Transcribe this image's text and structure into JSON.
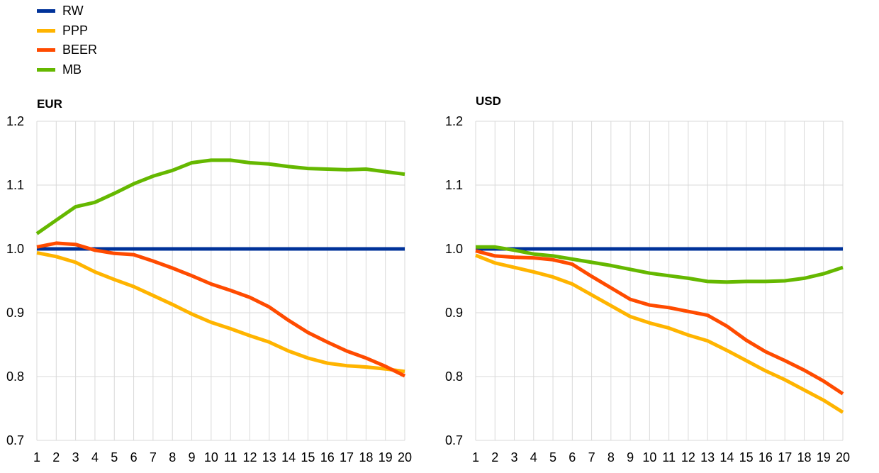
{
  "legend": [
    {
      "name": "RW",
      "color": "#003299"
    },
    {
      "name": "PPP",
      "color": "#ffb400"
    },
    {
      "name": "BEER",
      "color": "#ff4b00"
    },
    {
      "name": "MB",
      "color": "#65b800"
    }
  ],
  "chart_data": [
    {
      "type": "line",
      "title": "EUR",
      "x": [
        1,
        2,
        3,
        4,
        5,
        6,
        7,
        8,
        9,
        10,
        11,
        12,
        13,
        14,
        15,
        16,
        17,
        18,
        19,
        20
      ],
      "ylim": [
        0.7,
        1.2
      ],
      "yticks": [
        "1.2",
        "1.1",
        "1.0",
        "0.9",
        "0.8",
        "0.7"
      ],
      "grid": true,
      "legend": "top-left",
      "series": [
        {
          "name": "RW",
          "values": [
            1,
            1,
            1,
            1,
            1,
            1,
            1,
            1,
            1,
            1,
            1,
            1,
            1,
            1,
            1,
            1,
            1,
            1,
            1,
            1
          ]
        },
        {
          "name": "PPP",
          "values": [
            0.994,
            0.988,
            0.979,
            0.964,
            0.952,
            0.941,
            0.927,
            0.913,
            0.898,
            0.885,
            0.875,
            0.864,
            0.854,
            0.84,
            0.829,
            0.821,
            0.817,
            0.815,
            0.812,
            0.808
          ]
        },
        {
          "name": "BEER",
          "values": [
            1.003,
            1.009,
            1.007,
            0.998,
            0.993,
            0.991,
            0.981,
            0.97,
            0.958,
            0.945,
            0.935,
            0.924,
            0.909,
            0.888,
            0.869,
            0.854,
            0.84,
            0.829,
            0.816,
            0.801
          ]
        },
        {
          "name": "MB",
          "values": [
            1.024,
            1.045,
            1.066,
            1.073,
            1.087,
            1.102,
            1.114,
            1.123,
            1.135,
            1.139,
            1.139,
            1.135,
            1.133,
            1.129,
            1.126,
            1.125,
            1.124,
            1.125,
            1.121,
            1.117
          ]
        }
      ]
    },
    {
      "type": "line",
      "title": "USD",
      "x": [
        1,
        2,
        3,
        4,
        5,
        6,
        7,
        8,
        9,
        10,
        11,
        12,
        13,
        14,
        15,
        16,
        17,
        18,
        19,
        20
      ],
      "ylim": [
        0.7,
        1.2
      ],
      "yticks": [
        "1.2",
        "1.1",
        "1.0",
        "0.9",
        "0.8",
        "0.7"
      ],
      "grid": true,
      "series": [
        {
          "name": "RW",
          "values": [
            1,
            1,
            1,
            1,
            1,
            1,
            1,
            1,
            1,
            1,
            1,
            1,
            1,
            1,
            1,
            1,
            1,
            1,
            1,
            1
          ]
        },
        {
          "name": "PPP",
          "values": [
            0.99,
            0.978,
            0.971,
            0.964,
            0.956,
            0.945,
            0.928,
            0.911,
            0.894,
            0.884,
            0.876,
            0.865,
            0.856,
            0.841,
            0.825,
            0.809,
            0.795,
            0.779,
            0.763,
            0.744
          ]
        },
        {
          "name": "BEER",
          "values": [
            0.997,
            0.989,
            0.987,
            0.986,
            0.983,
            0.976,
            0.957,
            0.939,
            0.921,
            0.912,
            0.908,
            0.902,
            0.896,
            0.879,
            0.857,
            0.839,
            0.825,
            0.81,
            0.793,
            0.773
          ]
        },
        {
          "name": "MB",
          "values": [
            1.003,
            1.003,
            0.998,
            0.992,
            0.989,
            0.984,
            0.979,
            0.974,
            0.968,
            0.962,
            0.958,
            0.954,
            0.949,
            0.948,
            0.949,
            0.949,
            0.95,
            0.954,
            0.961,
            0.971
          ]
        }
      ]
    }
  ]
}
